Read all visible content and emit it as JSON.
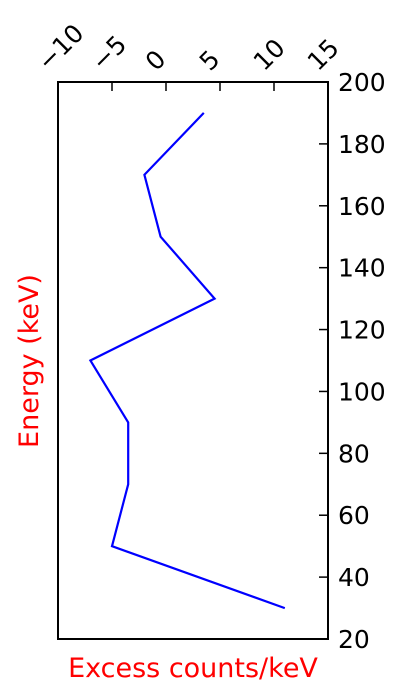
{
  "chart_data": {
    "type": "line",
    "orientation": "vertical",
    "xlabel": "Excess counts/keV",
    "ylabel": "Energy (keV)",
    "label_color": "#ff0000",
    "line_color": "#0000ff",
    "xlim": [
      -10,
      15
    ],
    "ylim": [
      20,
      200
    ],
    "x_ticks": [
      "−10",
      "−5",
      "0",
      "5",
      "10",
      "15"
    ],
    "y_ticks": [
      "20",
      "40",
      "60",
      "80",
      "100",
      "120",
      "140",
      "160",
      "180",
      "200"
    ],
    "x_axis_position": "top",
    "y_axis_position": "right",
    "grid": false,
    "series": [
      {
        "x": [
          11,
          -5,
          -3.5,
          -3.5,
          -7,
          4.5,
          -0.5,
          -2,
          3.5
        ],
        "y": [
          30,
          50,
          70,
          90,
          110,
          130,
          150,
          170,
          190
        ]
      }
    ]
  }
}
